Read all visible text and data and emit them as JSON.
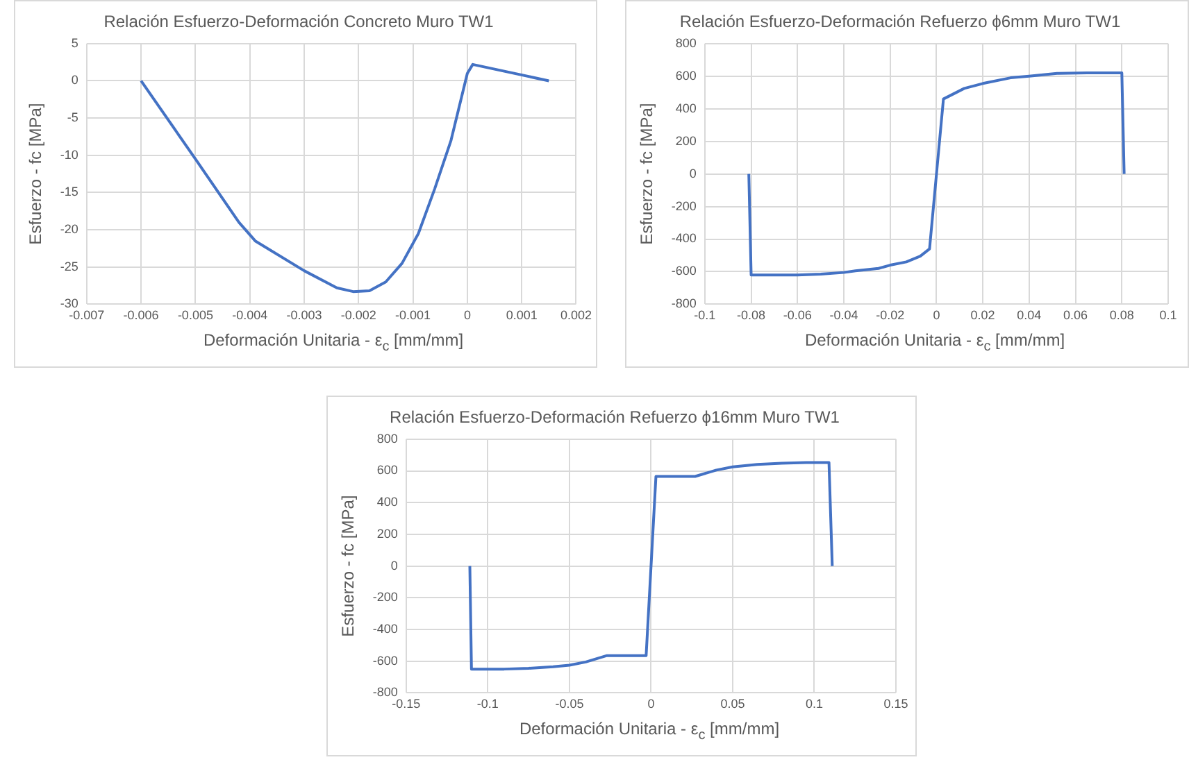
{
  "chart_data": [
    {
      "type": "line",
      "title": "Relación Esfuerzo-Deformación Concreto Muro TW1",
      "xlabel": "Deformación Unitaria - ε$_{c}$ [mm/mm]",
      "ylabel": "Esfuerzo - fc [MPa]",
      "grid": true,
      "legend": false,
      "marker": "none",
      "xlim": [
        -0.007,
        0.002
      ],
      "xticks": [
        -0.007,
        -0.006,
        -0.005,
        -0.004,
        -0.003,
        -0.002,
        -0.001,
        0,
        0.001,
        0.002
      ],
      "ylim": [
        -30,
        5
      ],
      "yticks": [
        -30,
        -25,
        -20,
        -15,
        -10,
        -5,
        0,
        5
      ],
      "series": [
        {
          "color": "#4472c4",
          "x": [
            -0.006,
            -0.005,
            -0.0042,
            -0.0039,
            -0.003,
            -0.0024,
            -0.0021,
            -0.0018,
            -0.0015,
            -0.0012,
            -0.0009,
            -0.0006,
            -0.0003,
            0,
            0.0001,
            0.0015
          ],
          "values": [
            0,
            -10.5,
            -19,
            -21.5,
            -25.5,
            -27.8,
            -28.3,
            -28.2,
            -27,
            -24.5,
            -20.5,
            -14.5,
            -8,
            1,
            2.2,
            0
          ]
        }
      ]
    },
    {
      "type": "line",
      "title": "Relación Esfuerzo-Deformación Refuerzo ϕ6mm Muro TW1",
      "xlabel": "Deformación Unitaria - ε$_{c}$ [mm/mm]",
      "ylabel": "Esfuerzo - fc [MPa]",
      "grid": true,
      "legend": false,
      "marker": "none",
      "xlim": [
        -0.1,
        0.1
      ],
      "xticks": [
        -0.1,
        -0.08,
        -0.06,
        -0.04,
        -0.02,
        0,
        0.02,
        0.04,
        0.06,
        0.08,
        0.1
      ],
      "ylim": [
        -800,
        800
      ],
      "yticks": [
        -800,
        -600,
        -400,
        -200,
        0,
        200,
        400,
        600,
        800
      ],
      "series": [
        {
          "color": "#4472c4",
          "x": [
            -0.081,
            -0.08,
            -0.06,
            -0.05,
            -0.04,
            -0.035,
            -0.025,
            -0.02,
            -0.013,
            -0.007,
            -0.003,
            0,
            0.003,
            0.012,
            0.02,
            0.032,
            0.04,
            0.052,
            0.065,
            0.08,
            0.081
          ],
          "values": [
            0,
            -620,
            -620,
            -615,
            -605,
            -595,
            -580,
            -560,
            -540,
            -505,
            -460,
            0,
            460,
            525,
            555,
            590,
            600,
            617,
            620,
            620,
            0
          ]
        }
      ]
    },
    {
      "type": "line",
      "title": "Relación Esfuerzo-Deformación Refuerzo ϕ16mm Muro TW1",
      "xlabel": "Deformación Unitaria - ε$_{c}$ [mm/mm]",
      "ylabel": "Esfuerzo - fc [MPa]",
      "grid": true,
      "legend": false,
      "marker": "none",
      "xlim": [
        -0.15,
        0.15
      ],
      "xticks": [
        -0.15,
        -0.1,
        -0.05,
        0,
        0.05,
        0.1,
        0.15
      ],
      "ylim": [
        -800,
        800
      ],
      "yticks": [
        -800,
        -600,
        -400,
        -200,
        0,
        200,
        400,
        600,
        800
      ],
      "series": [
        {
          "color": "#4472c4",
          "x": [
            -0.111,
            -0.11,
            -0.09,
            -0.075,
            -0.06,
            -0.05,
            -0.04,
            -0.027,
            -0.003,
            0.003,
            0.027,
            0.04,
            0.05,
            0.065,
            0.08,
            0.095,
            0.109,
            0.111
          ],
          "values": [
            0,
            -650,
            -650,
            -645,
            -635,
            -625,
            -605,
            -565,
            -565,
            565,
            565,
            605,
            625,
            640,
            648,
            652,
            652,
            0
          ]
        }
      ]
    }
  ]
}
